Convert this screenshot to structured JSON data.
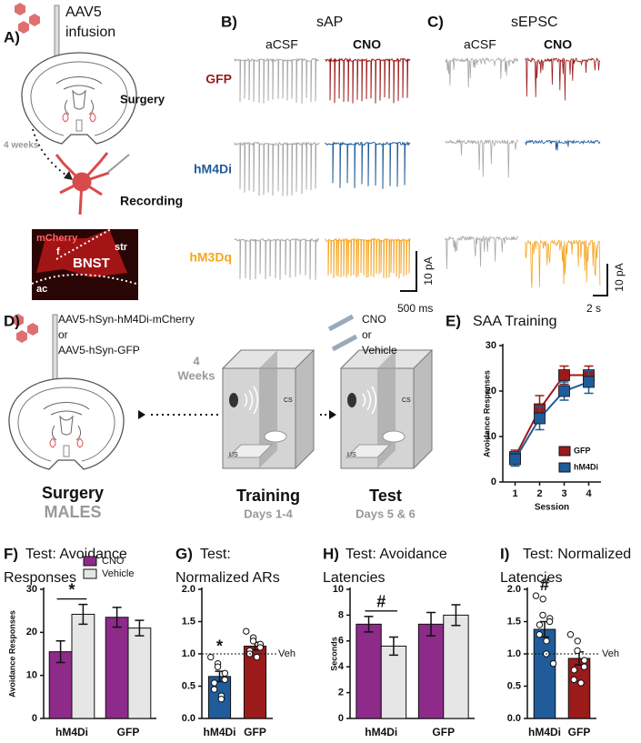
{
  "panel_a": {
    "label": "A)",
    "infusion": [
      "AAV5",
      "infusion"
    ],
    "surgery": "Surgery",
    "interval": "4 weeks",
    "recording": "Recording",
    "histology": {
      "marker": "mCherry",
      "f": "f",
      "region": "BNST",
      "str": "str",
      "ac": "ac"
    }
  },
  "panel_b": {
    "label": "B)",
    "title": "sAP",
    "conditions": [
      "aCSF",
      "CNO"
    ],
    "groups": [
      "GFP",
      "hM4Di",
      "hM3Dq"
    ],
    "group_colors": [
      "#9b1b1b",
      "#1f5c99",
      "#f5a623"
    ],
    "scale_y": "10 pA",
    "scale_x": "500 ms"
  },
  "panel_c": {
    "label": "C)",
    "title": "sEPSC",
    "conditions": [
      "aCSF",
      "CNO"
    ],
    "scale_y": "10 pA",
    "scale_x": "2 s"
  },
  "panel_d": {
    "label": "D)",
    "virus": [
      "AAV5-hSyn-hM4Di-mCherry",
      "or",
      "AAV5-hSyn-GFP"
    ],
    "drug": [
      "CNO",
      "or",
      "Vehicle"
    ],
    "interval": [
      "4",
      "Weeks"
    ],
    "cues": [
      "CS",
      "US"
    ],
    "stages": [
      {
        "name": "Surgery",
        "detail": "MALES"
      },
      {
        "name": "Training",
        "detail": "Days 1-4"
      },
      {
        "name": "Test",
        "detail": "Days 5 & 6"
      }
    ]
  },
  "chart_data": [
    {
      "type": "line",
      "label": "E)",
      "title": [
        "SAA Training"
      ],
      "ylabel": "Avoidance Responses",
      "xlabel": "Session",
      "x": [
        1,
        2,
        3,
        4
      ],
      "xlim": [
        0.5,
        4.5
      ],
      "xticks": [
        1,
        2,
        3,
        4
      ],
      "ylim": [
        0,
        30
      ],
      "yticks": [
        0,
        10,
        20,
        30
      ],
      "legend": "lower right",
      "series": [
        {
          "name": "GFP",
          "color": "#9b1b1b",
          "values": [
            5.5,
            16,
            23.5,
            23.5
          ],
          "errors": [
            1.5,
            3,
            2,
            2
          ]
        },
        {
          "name": "hM4Di",
          "color": "#1f5c99",
          "values": [
            5,
            14,
            20,
            22
          ],
          "errors": [
            1.5,
            2.5,
            2,
            2.5
          ]
        }
      ]
    },
    {
      "type": "bar",
      "label": "F)",
      "title": [
        "Test: Avoidance",
        "Responses"
      ],
      "ylabel": "Avoidance Responses",
      "categories": [
        "hM4Di",
        "GFP"
      ],
      "ylim": [
        0,
        30
      ],
      "yticks": [
        0,
        10,
        20,
        30
      ],
      "annotation": "*",
      "series": [
        {
          "name": "CNO",
          "color": "#8e2a8a",
          "values": [
            15.5,
            23.5
          ],
          "errors": [
            2.5,
            2.3
          ]
        },
        {
          "name": "Vehicle",
          "color": "#e6e6e6",
          "values": [
            24.2,
            21
          ],
          "errors": [
            2.3,
            1.8
          ]
        }
      ]
    },
    {
      "type": "bar",
      "label": "G)",
      "title": [
        "Test:",
        "Normalized ARs"
      ],
      "categories": [
        "hM4Di",
        "GFP"
      ],
      "colors": [
        "#1f5c99",
        "#9b1b1b"
      ],
      "values": [
        0.65,
        1.12
      ],
      "errors": [
        0.08,
        0.06
      ],
      "points": [
        [
          0.95,
          0.85,
          0.8,
          0.7,
          0.6,
          0.55,
          0.45,
          0.35,
          0.3
        ],
        [
          1.35,
          1.25,
          1.2,
          1.15,
          1.1,
          1.05,
          1.0,
          0.95
        ]
      ],
      "ylim": [
        0,
        2
      ],
      "yticks": [
        {
          "value": 0,
          "label": "0.0"
        },
        {
          "value": 0.5,
          "label": "0.5"
        },
        {
          "value": 1,
          "label": "1.0"
        },
        {
          "value": 1.5,
          "label": "1.5"
        },
        {
          "value": 2,
          "label": "2.0"
        }
      ],
      "reference": {
        "value": 1,
        "label": "Veh"
      },
      "annotation": "*"
    },
    {
      "type": "bar",
      "label": "H)",
      "title": [
        "Test: Avoidance",
        "Latencies"
      ],
      "ylabel": "Seconds",
      "categories": [
        "hM4Di",
        "GFP"
      ],
      "ylim": [
        0,
        10
      ],
      "yticks": [
        0,
        2,
        4,
        6,
        8,
        10
      ],
      "annotation": "#",
      "series": [
        {
          "name": "CNO",
          "color": "#8e2a8a",
          "values": [
            7.3,
            7.3
          ],
          "errors": [
            0.6,
            0.9
          ]
        },
        {
          "name": "Vehicle",
          "color": "#e6e6e6",
          "values": [
            5.6,
            8.0
          ],
          "errors": [
            0.7,
            0.8
          ]
        }
      ]
    },
    {
      "type": "bar",
      "label": "I)",
      "title": [
        "Test: Normalized",
        "Latencies"
      ],
      "categories": [
        "hM4Di",
        "GFP"
      ],
      "colors": [
        "#1f5c99",
        "#9b1b1b"
      ],
      "values": [
        1.38,
        0.93
      ],
      "errors": [
        0.12,
        0.1
      ],
      "points": [
        [
          1.9,
          1.85,
          1.6,
          1.55,
          1.5,
          1.45,
          1.3,
          1.2,
          1.0,
          0.85
        ],
        [
          1.3,
          1.2,
          1.05,
          0.9,
          0.8,
          0.75,
          0.6,
          0.55
        ]
      ],
      "ylim": [
        0,
        2
      ],
      "yticks": [
        {
          "value": 0,
          "label": "0.0"
        },
        {
          "value": 0.5,
          "label": "0.5"
        },
        {
          "value": 1,
          "label": "1.0"
        },
        {
          "value": 1.5,
          "label": "1.5"
        },
        {
          "value": 2,
          "label": "2.0"
        }
      ],
      "reference": {
        "value": 1,
        "label": "Veh"
      },
      "annotation": "#"
    }
  ]
}
